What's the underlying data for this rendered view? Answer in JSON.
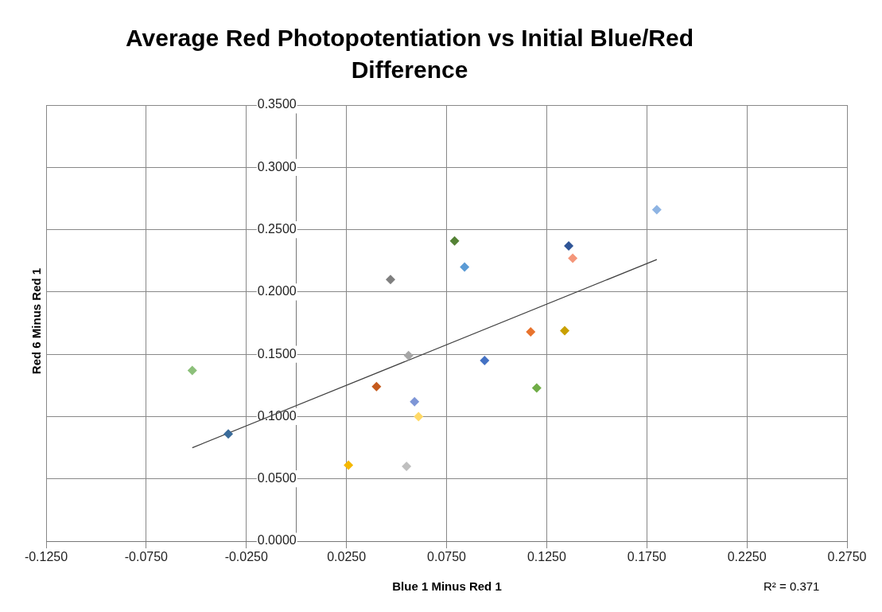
{
  "chart_data": {
    "type": "scatter",
    "title": "Average Red Photopotentiation vs Initial Blue/Red Difference",
    "xlabel": "Blue 1 Minus Red 1",
    "ylabel": "Red 6 Minus Red 1",
    "grid": true,
    "legend": false,
    "xlim": [
      -0.125,
      0.275
    ],
    "ylim": [
      0,
      0.35
    ],
    "xticks": [
      {
        "value": -0.125,
        "label": "-0.1250"
      },
      {
        "value": -0.075,
        "label": "-0.0750"
      },
      {
        "value": -0.025,
        "label": "-0.0250"
      },
      {
        "value": 0.025,
        "label": "0.0250"
      },
      {
        "value": 0.075,
        "label": "0.0750"
      },
      {
        "value": 0.125,
        "label": "0.1250"
      },
      {
        "value": 0.175,
        "label": "0.1750"
      },
      {
        "value": 0.225,
        "label": "0.2250"
      },
      {
        "value": 0.275,
        "label": "0.2750"
      }
    ],
    "yticks": [
      {
        "value": 0,
        "label": "0.0000"
      },
      {
        "value": 0.05,
        "label": "0.0500"
      },
      {
        "value": 0.1,
        "label": "0.1000"
      },
      {
        "value": 0.15,
        "label": "0.1500"
      },
      {
        "value": 0.2,
        "label": "0.2000"
      },
      {
        "value": 0.25,
        "label": "0.2500"
      },
      {
        "value": 0.3,
        "label": "0.3000"
      },
      {
        "value": 0.35,
        "label": "0.3500"
      }
    ],
    "annotations": [
      "R² = 0.371"
    ],
    "series": [
      {
        "marker": "diamond",
        "x": [
          -0.052,
          -0.034,
          0.026,
          0.04,
          0.047,
          0.056,
          0.055,
          0.059,
          0.061,
          0.079,
          0.084,
          0.094,
          0.117,
          0.12,
          0.134,
          0.136,
          0.138,
          0.18
        ],
        "values": [
          0.137,
          0.086,
          0.061,
          0.124,
          0.21,
          0.149,
          0.06,
          0.112,
          0.1,
          0.241,
          0.22,
          0.145,
          0.168,
          0.123,
          0.169,
          0.237,
          0.227,
          0.266
        ],
        "colors": [
          "#8cc07a",
          "#3a6b9a",
          "#f5b800",
          "#c55a1c",
          "#7f7f7f",
          "#a6a6a6",
          "#bfbfbf",
          "#7e96d6",
          "#ffd966",
          "#548235",
          "#5b9bd5",
          "#4472c4",
          "#e8732d",
          "#70ad47",
          "#c9a000",
          "#2f5597",
          "#f4967a",
          "#8eb4e3"
        ]
      },
      {
        "type": "line",
        "x": [
          -0.052,
          0.18
        ],
        "values": [
          0.075,
          0.226
        ],
        "color": "#404040",
        "marker": "none"
      }
    ]
  }
}
